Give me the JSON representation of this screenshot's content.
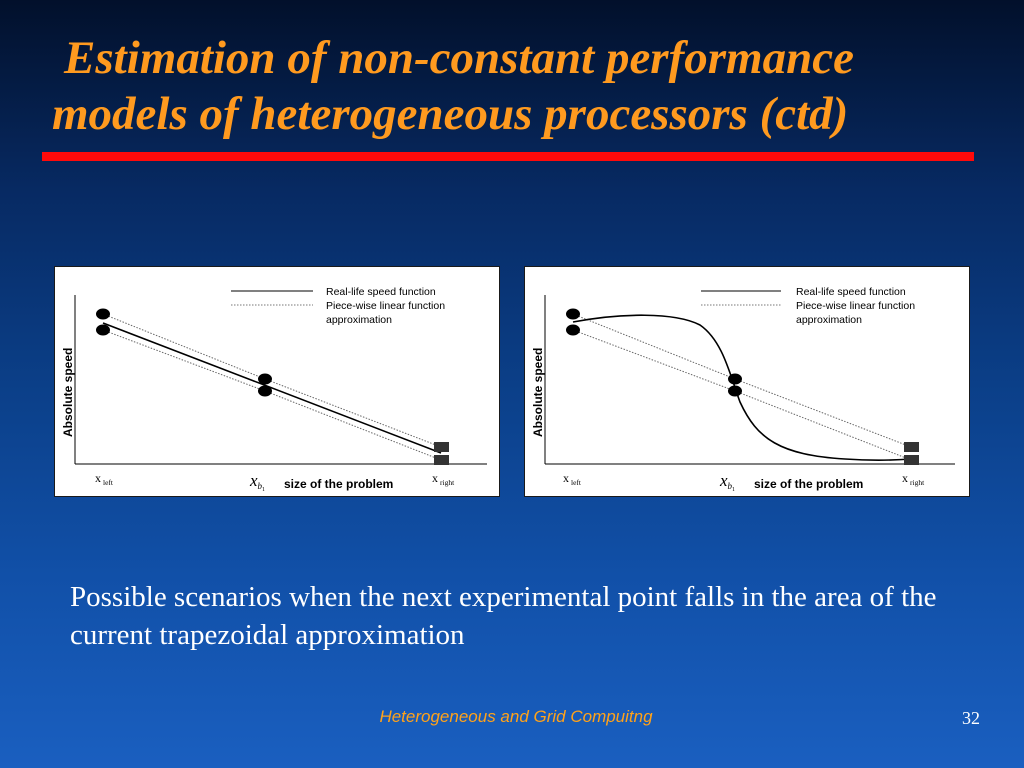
{
  "slide": {
    "title_line1": "Estimation of non-constant performance",
    "title_line2": "models of heterogeneous processors (ctd)",
    "caption": "Possible scenarios when the next experimental point falls in the area of the current trapezoidal approximation",
    "footer": "Heterogeneous and Grid Compuitng",
    "page_number": "32"
  },
  "diagram": {
    "ylabel": "Absolute speed",
    "xlabel": "size of the problem",
    "x_left": "x",
    "x_left_sub": "left",
    "x_right": "x",
    "x_right_sub": "right",
    "x_b": "x",
    "x_b_sub": "b",
    "x_b_subsub": "1",
    "legend_solid": "Real-life speed function",
    "legend_dotted_line1": "Piece-wise linear function",
    "legend_dotted_line2": "approximation"
  },
  "colors": {
    "title": "#ff9a1f",
    "rule": "#ff0a0a",
    "footer": "#ffa21a"
  }
}
